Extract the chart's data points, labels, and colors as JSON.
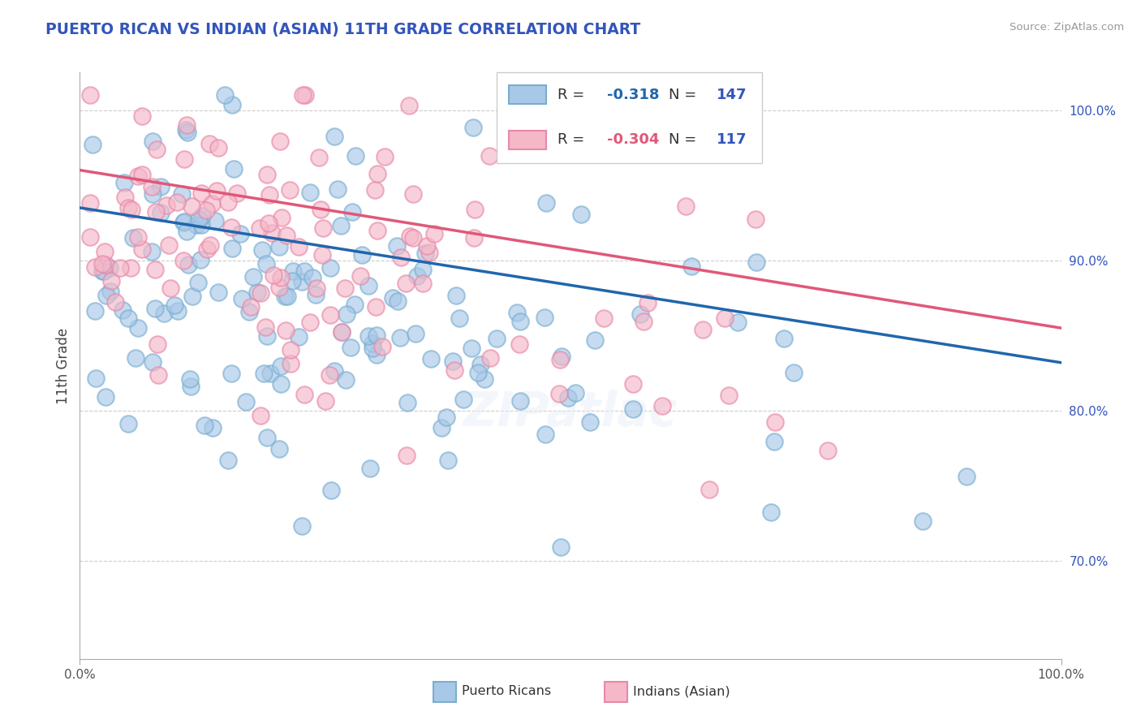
{
  "title": "PUERTO RICAN VS INDIAN (ASIAN) 11TH GRADE CORRELATION CHART",
  "source": "Source: ZipAtlas.com",
  "ylabel": "11th Grade",
  "xlim": [
    0.0,
    1.0
  ],
  "ylim": [
    0.635,
    1.025
  ],
  "yticks": [
    0.7,
    0.8,
    0.9,
    1.0
  ],
  "ytick_labels": [
    "70.0%",
    "80.0%",
    "90.0%",
    "100.0%"
  ],
  "blue_R": -0.318,
  "blue_N": 147,
  "pink_R": -0.304,
  "pink_N": 117,
  "blue_color": "#a8c8e8",
  "pink_color": "#f4b8c8",
  "blue_edge_color": "#7aaed0",
  "pink_edge_color": "#e888a8",
  "blue_trend_color": "#2166ac",
  "pink_trend_color": "#e05878",
  "background_color": "#ffffff",
  "grid_color": "#cccccc",
  "title_color": "#3355bb",
  "legend_label_blue": "Puerto Ricans",
  "legend_label_pink": "Indians (Asian)",
  "blue_trend_start_y": 0.935,
  "blue_trend_end_y": 0.832,
  "pink_trend_start_y": 0.96,
  "pink_trend_end_y": 0.855
}
